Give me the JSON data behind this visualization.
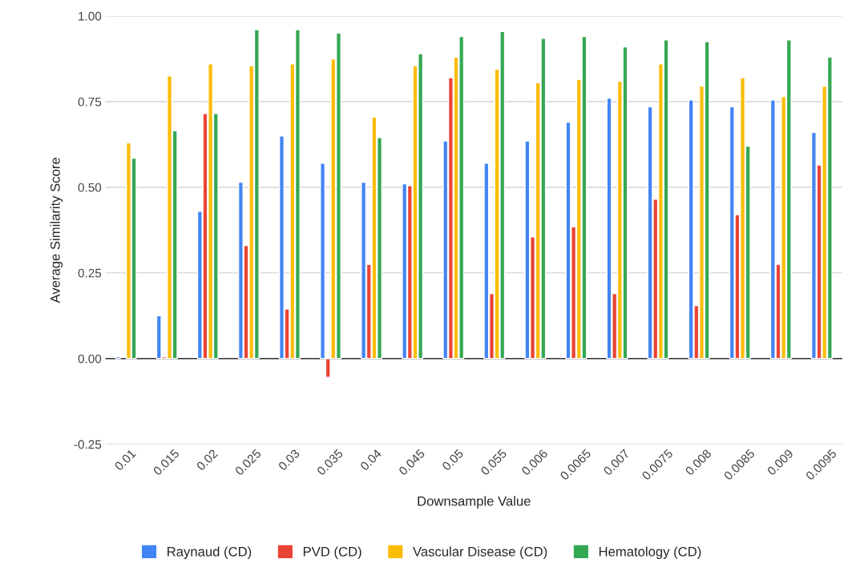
{
  "chart_data": {
    "type": "bar",
    "xlabel": "Downsample Value",
    "ylabel": "Average Similarity Score",
    "categories": [
      "0.01",
      "0.015",
      "0.02",
      "0.025",
      "0.03",
      "0.035",
      "0.04",
      "0.045",
      "0.05",
      "0.055",
      "0.006",
      "0.0065",
      "0.007",
      "0.0075",
      "0.008",
      "0.0085",
      "0.009",
      "0.0095"
    ],
    "series": [
      {
        "name": "Raynaud (CD)",
        "color": "#4285f4",
        "values": [
          0.005,
          0.125,
          0.43,
          0.515,
          0.65,
          0.57,
          0.515,
          0.51,
          0.635,
          0.57,
          0.635,
          0.69,
          0.76,
          0.735,
          0.755,
          0.735,
          0.755,
          0.66
        ]
      },
      {
        "name": "PVD (CD)",
        "color": "#ea4335",
        "values": [
          null,
          0.005,
          0.715,
          0.33,
          0.145,
          -0.055,
          0.275,
          0.505,
          0.82,
          0.19,
          0.355,
          0.385,
          0.19,
          0.465,
          0.155,
          0.42,
          0.275,
          0.565
        ]
      },
      {
        "name": "Vascular Disease (CD)",
        "color": "#fbbc04",
        "values": [
          0.63,
          0.825,
          0.86,
          0.855,
          0.86,
          0.875,
          0.705,
          0.855,
          0.88,
          0.845,
          0.805,
          0.815,
          0.81,
          0.86,
          0.795,
          0.82,
          0.765,
          0.795
        ]
      },
      {
        "name": "Hematology (CD)",
        "color": "#34a853",
        "values": [
          0.585,
          0.665,
          0.715,
          0.96,
          0.96,
          0.95,
          0.645,
          0.89,
          0.94,
          0.955,
          0.935,
          0.94,
          0.91,
          0.93,
          0.925,
          0.62,
          0.93,
          0.88
        ]
      }
    ],
    "ylim": [
      -0.25,
      1.0
    ],
    "yticks": [
      {
        "value": -0.25,
        "label": "-0.25"
      },
      {
        "value": 0,
        "label": "0.00"
      },
      {
        "value": 0.25,
        "label": "0.25"
      },
      {
        "value": 0.5,
        "label": "0.50"
      },
      {
        "value": 0.75,
        "label": "0.75"
      },
      {
        "value": 1.0,
        "label": "1.00"
      }
    ],
    "grid": "y",
    "legend": "bottom"
  }
}
